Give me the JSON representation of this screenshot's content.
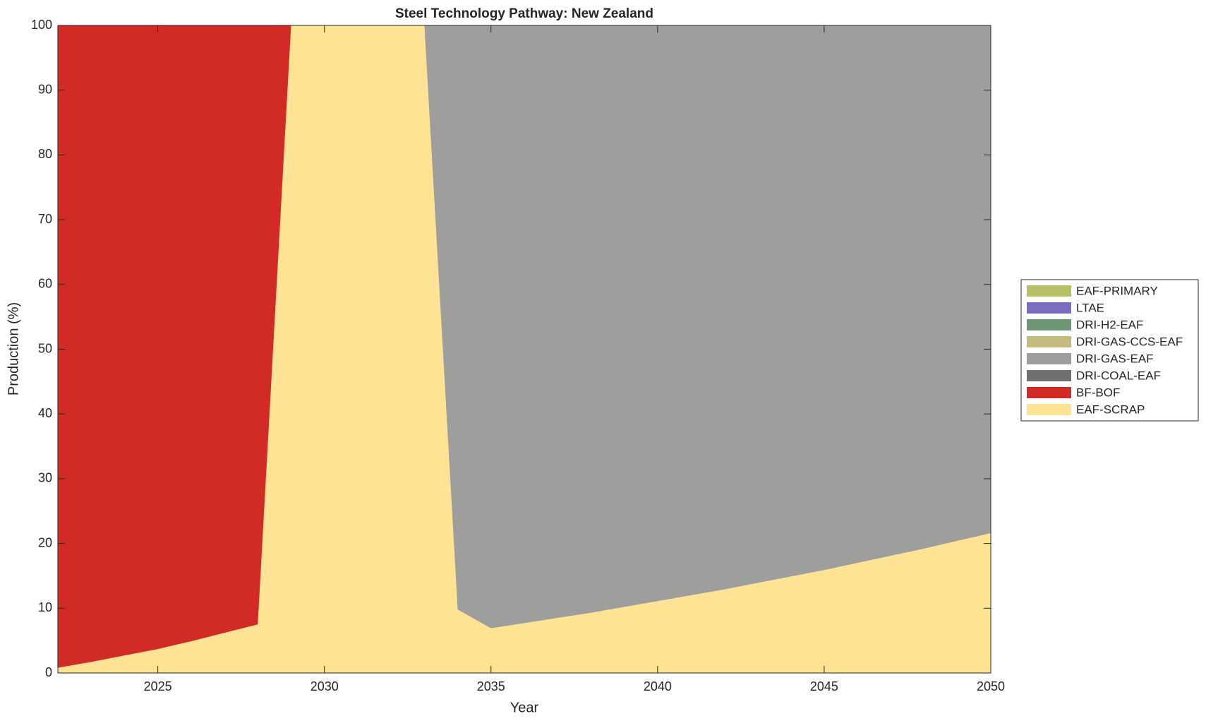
{
  "chart_data": {
    "type": "stacked_area",
    "title": "Steel Technology Pathway: New Zealand",
    "x_label": "Year",
    "y_label": "Production (%)",
    "x": [
      2022,
      2023,
      2024,
      2025,
      2026,
      2027,
      2028,
      2029,
      2030,
      2031,
      2032,
      2033,
      2034,
      2035,
      2036,
      2037,
      2038,
      2039,
      2040,
      2041,
      2042,
      2043,
      2044,
      2045,
      2046,
      2047,
      2048,
      2049,
      2050
    ],
    "series": [
      {
        "name": "EAF-SCRAP",
        "color": "#fee395",
        "values": [
          0.8,
          1.7,
          2.7,
          3.7,
          4.9,
          6.2,
          7.5,
          100,
          100,
          100,
          100,
          100,
          9.8,
          6.9,
          7.7,
          8.5,
          9.3,
          10.2,
          11.1,
          12.0,
          12.9,
          13.9,
          14.9,
          15.9,
          17.0,
          18.1,
          19.2,
          20.4,
          21.6
        ]
      },
      {
        "name": "BF-BOF",
        "color": "#d22b26",
        "values": [
          99.2,
          98.3,
          97.3,
          96.3,
          95.1,
          93.8,
          92.5,
          0,
          0,
          0,
          0,
          0,
          0,
          0,
          0,
          0,
          0,
          0,
          0,
          0,
          0,
          0,
          0,
          0,
          0,
          0,
          0,
          0,
          0
        ]
      },
      {
        "name": "DRI-COAL-EAF",
        "color": "#6e6e6e",
        "values": [
          0,
          0,
          0,
          0,
          0,
          0,
          0,
          0,
          0,
          0,
          0,
          0,
          0,
          0,
          0,
          0,
          0,
          0,
          0,
          0,
          0,
          0,
          0,
          0,
          0,
          0,
          0,
          0,
          0
        ]
      },
      {
        "name": "DRI-GAS-EAF",
        "color": "#9e9e9c",
        "values": [
          0,
          0,
          0,
          0,
          0,
          0,
          0,
          0,
          0,
          0,
          0,
          0,
          90.2,
          93.1,
          92.3,
          91.5,
          90.7,
          89.8,
          88.9,
          88.0,
          87.1,
          86.1,
          85.1,
          84.1,
          83.0,
          81.9,
          80.8,
          79.6,
          78.4
        ]
      },
      {
        "name": "DRI-GAS-CCS-EAF",
        "color": "#c4bb7f",
        "values": [
          0,
          0,
          0,
          0,
          0,
          0,
          0,
          0,
          0,
          0,
          0,
          0,
          0,
          0,
          0,
          0,
          0,
          0,
          0,
          0,
          0,
          0,
          0,
          0,
          0,
          0,
          0,
          0,
          0
        ]
      },
      {
        "name": "DRI-H2-EAF",
        "color": "#6e9778",
        "values": [
          0,
          0,
          0,
          0,
          0,
          0,
          0,
          0,
          0,
          0,
          0,
          0,
          0,
          0,
          0,
          0,
          0,
          0,
          0,
          0,
          0,
          0,
          0,
          0,
          0,
          0,
          0,
          0,
          0
        ]
      },
      {
        "name": "LTAE",
        "color": "#7b6dbf",
        "values": [
          0,
          0,
          0,
          0,
          0,
          0,
          0,
          0,
          0,
          0,
          0,
          0,
          0,
          0,
          0,
          0,
          0,
          0,
          0,
          0,
          0,
          0,
          0,
          0,
          0,
          0,
          0,
          0,
          0
        ]
      },
      {
        "name": "EAF-PRIMARY",
        "color": "#b9bf66",
        "values": [
          0,
          0,
          0,
          0,
          0,
          0,
          0,
          0,
          0,
          0,
          0,
          0,
          0,
          0,
          0,
          0,
          0,
          0,
          0,
          0,
          0,
          0,
          0,
          0,
          0,
          0,
          0,
          0,
          0
        ]
      }
    ],
    "xlim": [
      2022,
      2050
    ],
    "xticks": [
      2025,
      2030,
      2035,
      2040,
      2045,
      2050
    ],
    "ylim": [
      0,
      100
    ],
    "yticks": [
      0,
      10,
      20,
      30,
      40,
      50,
      60,
      70,
      80,
      90,
      100
    ],
    "legend_position": "right"
  }
}
